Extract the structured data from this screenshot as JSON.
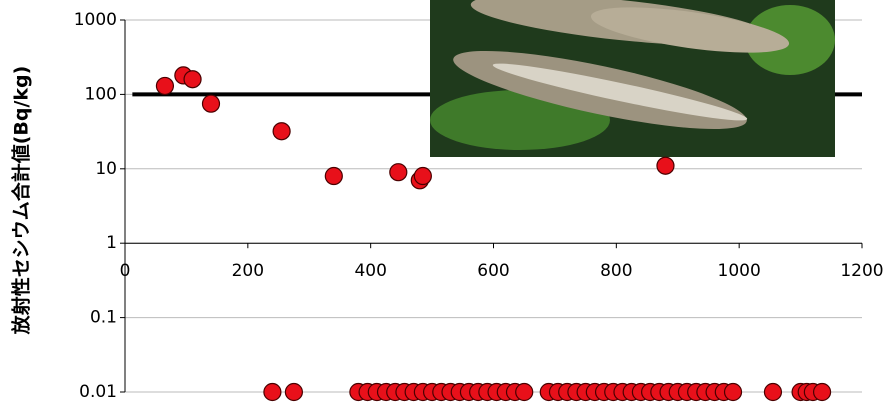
{
  "chart_data": {
    "type": "scatter",
    "y_label": "放射性セシウム合計値(Bq/kg)",
    "x": [
      65,
      95,
      110,
      140,
      255,
      340,
      445,
      480,
      485,
      880,
      240,
      275,
      380,
      395,
      410,
      425,
      440,
      455,
      470,
      485,
      500,
      515,
      530,
      545,
      560,
      575,
      590,
      605,
      620,
      635,
      650,
      690,
      705,
      720,
      735,
      750,
      765,
      780,
      795,
      810,
      825,
      840,
      855,
      870,
      885,
      900,
      915,
      930,
      945,
      960,
      975,
      990,
      1055,
      1100,
      1110,
      1120,
      1135
    ],
    "values": [
      130,
      180,
      160,
      75,
      32,
      8,
      9,
      7,
      8,
      11,
      0.01,
      0.01,
      0.01,
      0.01,
      0.01,
      0.01,
      0.01,
      0.01,
      0.01,
      0.01,
      0.01,
      0.01,
      0.01,
      0.01,
      0.01,
      0.01,
      0.01,
      0.01,
      0.01,
      0.01,
      0.01,
      0.01,
      0.01,
      0.01,
      0.01,
      0.01,
      0.01,
      0.01,
      0.01,
      0.01,
      0.01,
      0.01,
      0.01,
      0.01,
      0.01,
      0.01,
      0.01,
      0.01,
      0.01,
      0.01,
      0.01,
      0.01,
      0.01,
      0.01,
      0.01,
      0.01,
      0.01
    ],
    "color": "#e8101a",
    "xlim": [
      0,
      1200
    ],
    "xticks": [
      0,
      200,
      400,
      600,
      800,
      1000,
      1200
    ],
    "ylim": [
      0.01,
      1000
    ],
    "yticks": [
      1000,
      100,
      10,
      1,
      0.1,
      0.01
    ],
    "ylog": true,
    "grid": true,
    "threshold": 100
  }
}
